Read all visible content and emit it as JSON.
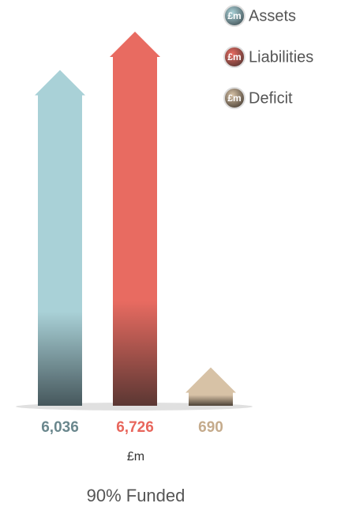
{
  "chart_data": {
    "type": "bar",
    "title": "90% Funded",
    "unit": "£m",
    "categories": [
      "Assets",
      "Liabilities",
      "Deficit"
    ],
    "values": [
      6036,
      6726,
      690
    ],
    "value_labels": [
      "6,036",
      "6,726",
      "690"
    ],
    "colors": [
      "#a9d1d7",
      "#e86b61",
      "#d7c2a6"
    ],
    "label_colors": [
      "#6a878d",
      "#e8665c",
      "#c5ab8c"
    ],
    "dark_colors": [
      "#46575c",
      "#5b3733",
      "#4d4237"
    ]
  }
}
